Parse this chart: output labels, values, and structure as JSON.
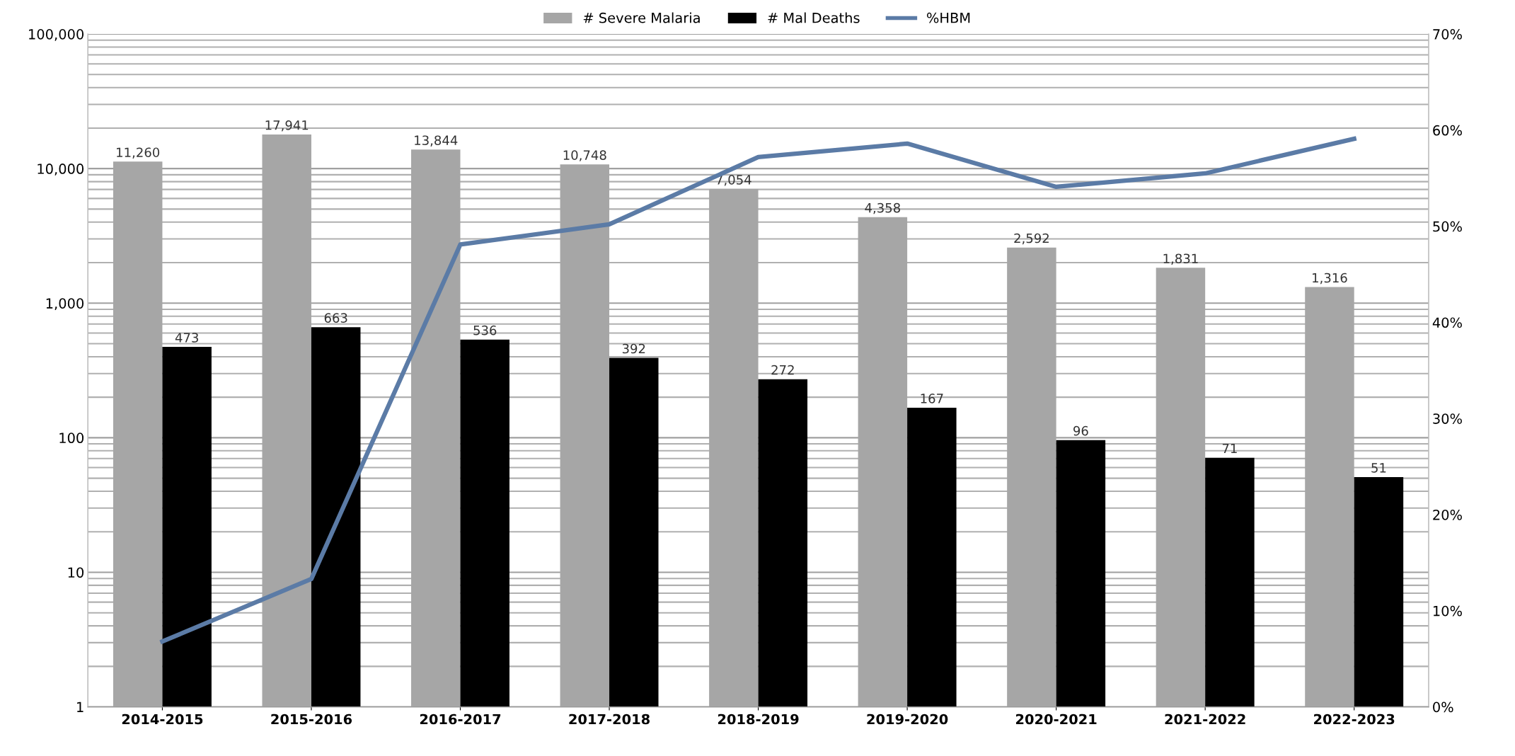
{
  "chart_data": {
    "type": "bar",
    "categories": [
      "2014-2015",
      "2015-2016",
      "2016-2017",
      "2017-2018",
      "2018-2019",
      "2019-2020",
      "2020-2021",
      "2021-2022",
      "2022-2023"
    ],
    "series": [
      {
        "name": "# Severe Malaria",
        "color": "#a6a6a6",
        "values": [
          11260,
          17941,
          13844,
          10748,
          7054,
          4358,
          2592,
          1831,
          1316
        ],
        "value_labels": [
          "11,260",
          "17,941",
          "13,844",
          "10,748",
          "7,054",
          "4,358",
          "2,592",
          "1,831",
          "1,316"
        ]
      },
      {
        "name": "# Mal Deaths",
        "color": "#000000",
        "values": [
          473,
          663,
          536,
          392,
          272,
          167,
          96,
          71,
          51
        ],
        "value_labels": [
          "473",
          "663",
          "536",
          "392",
          "272",
          "167",
          "96",
          "71",
          "51"
        ]
      },
      {
        "name": "%HBM",
        "type": "line",
        "axis": "y2",
        "color": "#5b7ba6",
        "values": [
          6.8,
          13.3,
          48.1,
          50.2,
          57.2,
          58.6,
          54.1,
          55.5,
          59.1
        ]
      }
    ],
    "log": "y",
    "ylim": [
      1,
      100000
    ],
    "yticks": [
      1,
      10,
      100,
      {
        "value": 1000,
        "label": "1,000"
      },
      {
        "value": 10000,
        "label": "10,000"
      },
      {
        "value": 100000,
        "label": "100,000"
      }
    ],
    "y2lim": [
      0,
      70
    ],
    "y2ticks": [
      {
        "value": 0,
        "label": "0%"
      },
      {
        "value": 10,
        "label": "10%"
      },
      {
        "value": 20,
        "label": "20%"
      },
      {
        "value": 30,
        "label": "30%"
      },
      {
        "value": 40,
        "label": "40%"
      },
      {
        "value": 50,
        "label": "50%"
      },
      {
        "value": 60,
        "label": "60%"
      },
      {
        "value": 70,
        "label": "70%"
      }
    ],
    "grid": "y",
    "legend": "top",
    "marker": "none",
    "line_style": "solid"
  }
}
